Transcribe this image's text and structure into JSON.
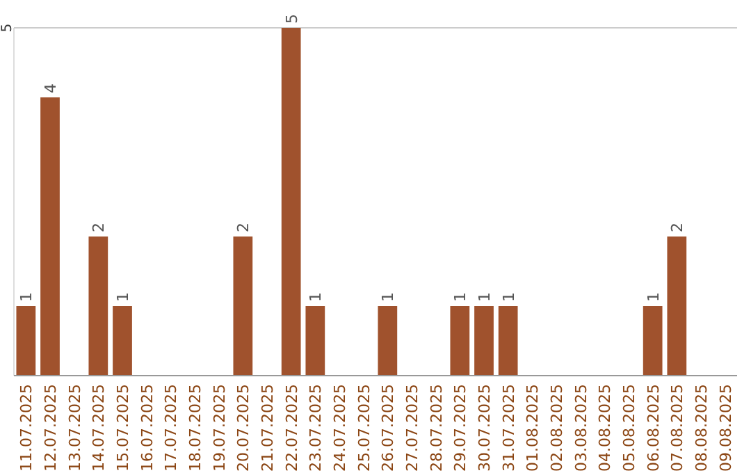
{
  "chart_data": {
    "type": "bar",
    "categories": [
      "11.07.2025",
      "12.07.2025",
      "13.07.2025",
      "14.07.2025",
      "15.07.2025",
      "16.07.2025",
      "17.07.2025",
      "18.07.2025",
      "19.07.2025",
      "20.07.2025",
      "21.07.2025",
      "22.07.2025",
      "23.07.2025",
      "24.07.2025",
      "25.07.2025",
      "26.07.2025",
      "27.07.2025",
      "28.07.2025",
      "29.07.2025",
      "30.07.2025",
      "31.07.2025",
      "01.08.2025",
      "02.08.2025",
      "03.08.2025",
      "04.08.2025",
      "05.08.2025",
      "06.08.2025",
      "07.08.2025",
      "08.08.2025",
      "09.08.2025"
    ],
    "values": [
      1,
      4,
      null,
      2,
      1,
      null,
      null,
      null,
      null,
      2,
      null,
      5,
      1,
      null,
      null,
      1,
      null,
      null,
      1,
      1,
      1,
      null,
      null,
      null,
      null,
      null,
      1,
      2,
      null,
      null
    ],
    "color": "#a0522d",
    "ylim": [
      0,
      5
    ],
    "yticks": [
      5
    ],
    "data_labels": true
  }
}
